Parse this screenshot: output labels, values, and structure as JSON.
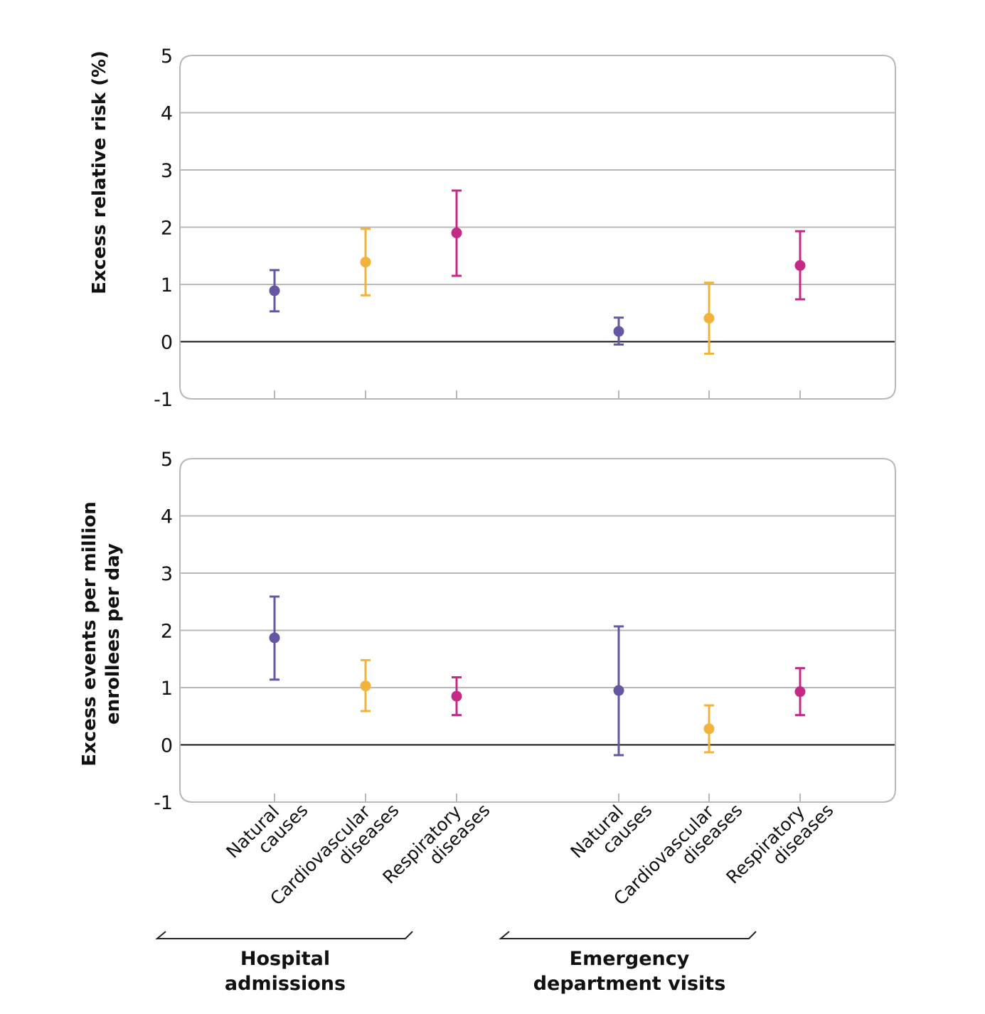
{
  "chart_data": [
    {
      "type": "scatter",
      "subtype": "point-with-error-bars",
      "title": "",
      "ylabel": "Excess relative risk (%)",
      "xlabel": "",
      "ylim": [
        -1,
        5
      ],
      "yticks": [
        "5",
        "4",
        "3",
        "2",
        "1",
        "0",
        "-1"
      ],
      "ytick_values": [
        5,
        4,
        3,
        2,
        1,
        0,
        -1
      ],
      "grid": true,
      "groups": [
        {
          "name": "Hospital admissions",
          "points": [
            {
              "category": "Natural causes",
              "value": 0.89,
              "lower": 0.53,
              "upper": 1.25,
              "color": "#6655A3"
            },
            {
              "category": "Cardiovascular diseases",
              "value": 1.39,
              "lower": 0.81,
              "upper": 1.97,
              "color": "#F2B33D"
            },
            {
              "category": "Respiratory diseases",
              "value": 1.9,
              "lower": 1.15,
              "upper": 2.64,
              "color": "#C42A85"
            }
          ]
        },
        {
          "name": "Emergency department visits",
          "points": [
            {
              "category": "Natural causes",
              "value": 0.18,
              "lower": -0.05,
              "upper": 0.42,
              "color": "#6655A3"
            },
            {
              "category": "Cardiovascular diseases",
              "value": 0.41,
              "lower": -0.21,
              "upper": 1.03,
              "color": "#F2B33D"
            },
            {
              "category": "Respiratory diseases",
              "value": 1.33,
              "lower": 0.74,
              "upper": 1.93,
              "color": "#C42A85"
            }
          ]
        }
      ]
    },
    {
      "type": "scatter",
      "subtype": "point-with-error-bars",
      "title": "",
      "ylabel": "Excess events per million enrollees per day",
      "ylabel_lines": [
        "Excess events per million",
        "enrollees per day"
      ],
      "xlabel": "",
      "ylim": [
        -1,
        5
      ],
      "yticks": [
        "5",
        "4",
        "3",
        "2",
        "1",
        "0",
        "-1"
      ],
      "ytick_values": [
        5,
        4,
        3,
        2,
        1,
        0,
        -1
      ],
      "grid": true,
      "groups": [
        {
          "name": "Hospital admissions",
          "points": [
            {
              "category": "Natural causes",
              "value": 1.87,
              "lower": 1.14,
              "upper": 2.59,
              "color": "#6655A3"
            },
            {
              "category": "Cardiovascular diseases",
              "value": 1.03,
              "lower": 0.59,
              "upper": 1.48,
              "color": "#F2B33D"
            },
            {
              "category": "Respiratory diseases",
              "value": 0.85,
              "lower": 0.52,
              "upper": 1.18,
              "color": "#C42A85"
            }
          ]
        },
        {
          "name": "Emergency department visits",
          "points": [
            {
              "category": "Natural causes",
              "value": 0.95,
              "lower": -0.18,
              "upper": 2.07,
              "color": "#6655A3"
            },
            {
              "category": "Cardiovascular diseases",
              "value": 0.28,
              "lower": -0.13,
              "upper": 0.69,
              "color": "#F2B33D"
            },
            {
              "category": "Respiratory diseases",
              "value": 0.93,
              "lower": 0.52,
              "upper": 1.34,
              "color": "#C42A85"
            }
          ]
        }
      ]
    }
  ],
  "categories": [
    {
      "lines": [
        "Natural",
        "causes"
      ]
    },
    {
      "lines": [
        "Cardiovascular",
        "diseases"
      ]
    },
    {
      "lines": [
        "Respiratory",
        "diseases"
      ]
    }
  ],
  "group_labels": [
    {
      "lines": [
        "Hospital",
        "admissions"
      ]
    },
    {
      "lines": [
        "Emergency",
        "department visits"
      ]
    }
  ],
  "colors": {
    "natural_causes": "#6655A3",
    "cardiovascular": "#F2B33D",
    "respiratory": "#C42A85",
    "grid": "#B8B8B8",
    "zero_line": "#111111"
  }
}
